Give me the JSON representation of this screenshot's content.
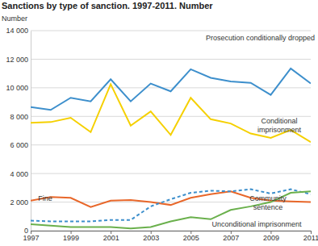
{
  "chart_data": {
    "type": "line",
    "title": "Sanctions by type of sanction. 1997-2011. Number",
    "y_label": "Number",
    "x": [
      1997,
      1998,
      1999,
      2000,
      2001,
      2002,
      2003,
      2004,
      2005,
      2006,
      2007,
      2008,
      2009,
      2010,
      2011
    ],
    "xlim": [
      1997,
      2011
    ],
    "xticks": [
      1997,
      1999,
      2001,
      2003,
      2005,
      2007,
      2009,
      2011
    ],
    "ylim": [
      0,
      14000
    ],
    "yticks": [
      0,
      {
        "value": 2000,
        "label": "2 000"
      },
      {
        "value": 4000,
        "label": "4 000"
      },
      {
        "value": 6000,
        "label": "6 000"
      },
      {
        "value": 8000,
        "label": "8 000"
      },
      {
        "value": 10000,
        "label": "10 000"
      },
      {
        "value": 12000,
        "label": "12 000"
      },
      {
        "value": 14000,
        "label": "14 000"
      }
    ],
    "grid": true,
    "series": [
      {
        "name": "Prosecution conditionally dropped",
        "color": "#3d8fcc",
        "line_style": "solid",
        "values": [
          8650,
          8450,
          9300,
          9050,
          10600,
          9050,
          10300,
          9750,
          11300,
          10700,
          10450,
          10350,
          9500,
          11350,
          10300
        ]
      },
      {
        "name": "Conditional imprisonment",
        "color": "#f5d000",
        "line_style": "solid",
        "values": [
          7550,
          7600,
          7900,
          6900,
          10250,
          7350,
          8350,
          6700,
          9300,
          7800,
          7500,
          6800,
          6500,
          7050,
          6200
        ]
      },
      {
        "name": "Fine",
        "color": "#e8672a",
        "line_style": "solid",
        "values": [
          2100,
          2350,
          2300,
          1650,
          2100,
          2150,
          2000,
          1800,
          2300,
          2550,
          2750,
          2300,
          2100,
          2050,
          2000
        ]
      },
      {
        "name": "Community sentence",
        "color": "#3d8fcc",
        "line_style": "dashed",
        "values": [
          700,
          650,
          650,
          650,
          750,
          750,
          1700,
          2200,
          2650,
          2800,
          2750,
          2900,
          2600,
          2900,
          2550
        ]
      },
      {
        "name": "Unconditional imprisonment",
        "color": "#6ab04c",
        "line_style": "solid",
        "values": [
          450,
          350,
          250,
          250,
          250,
          150,
          250,
          650,
          950,
          800,
          1450,
          1700,
          2000,
          2650,
          2750
        ]
      }
    ]
  }
}
